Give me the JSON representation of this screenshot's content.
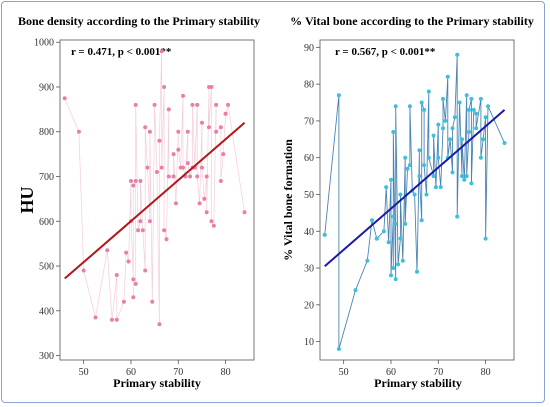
{
  "chart_data": [
    {
      "type": "scatter",
      "title": "Bone density according to the Primary stability",
      "xlabel": "Primary stability",
      "ylabel": "HU",
      "annotation": "r = 0.471, p < 0.001**",
      "xlim": [
        45,
        86
      ],
      "ylim": [
        290,
        1005
      ],
      "xticks": [
        50,
        60,
        70,
        80
      ],
      "yticks": [
        300,
        400,
        500,
        600,
        700,
        800,
        900,
        1000
      ],
      "colors": {
        "marker": "#e87fa8",
        "line": "#f2c4d4",
        "fit": "#b01818"
      },
      "fit": {
        "x": [
          46,
          84
        ],
        "y": [
          472,
          820
        ]
      },
      "points": {
        "x": [
          46,
          49,
          50,
          52.5,
          55,
          56,
          57,
          57,
          58.5,
          59,
          59.5,
          60,
          60,
          60.5,
          60.5,
          60.5,
          61,
          61,
          61,
          61.5,
          62,
          62,
          62.5,
          63,
          63,
          63.5,
          64,
          64,
          64.5,
          65,
          65.5,
          66,
          66,
          66.5,
          66.5,
          67,
          67,
          67.5,
          68,
          68,
          69,
          69,
          69.5,
          70,
          70,
          70.5,
          71,
          71,
          71.5,
          72,
          72,
          72.5,
          73,
          73,
          73.5,
          74,
          74,
          74.5,
          75,
          75,
          75.5,
          76,
          76,
          76.5,
          76.5,
          77,
          77,
          77.5,
          78,
          78,
          79,
          79,
          79.5,
          80,
          80,
          80.5,
          84
        ],
        "y": [
          875,
          800,
          490,
          385,
          535,
          380,
          480,
          380,
          420,
          530,
          510,
          690,
          600,
          470,
          430,
          680,
          690,
          460,
          860,
          580,
          600,
          690,
          580,
          490,
          810,
          720,
          600,
          800,
          420,
          860,
          710,
          370,
          780,
          980,
          720,
          900,
          580,
          560,
          850,
          700,
          700,
          750,
          640,
          800,
          760,
          720,
          880,
          720,
          700,
          800,
          730,
          700,
          720,
          860,
          720,
          860,
          700,
          640,
          820,
          720,
          650,
          700,
          620,
          900,
          810,
          900,
          600,
          590,
          860,
          800,
          810,
          690,
          750,
          840,
          840,
          860,
          620
        ]
      }
    },
    {
      "type": "scatter",
      "title": "% Vital bone according to the Primary stability",
      "xlabel": "Primary stability",
      "ylabel": "% Vital bone formation",
      "annotation": "r = 0.567, p < 0.001**",
      "xlim": [
        45,
        86
      ],
      "ylim": [
        5,
        92
      ],
      "xticks": [
        50,
        60,
        70,
        80
      ],
      "yticks": [
        10,
        20,
        30,
        40,
        50,
        60,
        70,
        80,
        90
      ],
      "colors": {
        "marker": "#3cc0dc",
        "line": "#2a6fa8",
        "fit": "#1a1aa6"
      },
      "fit": {
        "x": [
          46,
          84
        ],
        "y": [
          30.5,
          73
        ]
      },
      "points": {
        "x": [
          46,
          49,
          49,
          52.5,
          55,
          56,
          57,
          57,
          58.5,
          59,
          59.5,
          60,
          60,
          60.5,
          60.5,
          60.5,
          61,
          61,
          61,
          61.5,
          62,
          62,
          62.5,
          63,
          63,
          63.5,
          64,
          64,
          64.5,
          65,
          65.5,
          66,
          66,
          66.5,
          66.5,
          67,
          67,
          67.5,
          68,
          68,
          69,
          69,
          69.5,
          70,
          70,
          70.5,
          71,
          71,
          71.5,
          72,
          72,
          72.5,
          73,
          73,
          73.5,
          74,
          74,
          74.5,
          75,
          75,
          75.5,
          76,
          76,
          76.5,
          76.5,
          77,
          77,
          77.5,
          78,
          78,
          79,
          79,
          79.5,
          80,
          80,
          80.5,
          84
        ],
        "y": [
          39,
          77,
          8,
          24,
          32,
          43,
          38,
          38,
          40,
          52,
          37,
          54,
          28,
          44,
          30,
          67,
          27,
          42,
          74,
          31,
          38,
          50,
          32,
          60,
          42,
          57,
          58,
          74,
          51,
          50,
          29,
          62,
          55,
          43,
          75,
          73,
          58,
          50,
          78,
          60,
          55,
          66,
          52,
          69,
          60,
          52,
          68,
          76,
          70,
          82,
          60,
          65,
          56,
          68,
          71,
          88,
          44,
          75,
          55,
          65,
          54,
          77,
          55,
          67,
          73,
          76,
          53,
          73,
          72,
          68,
          76,
          60,
          65,
          71,
          38,
          74,
          64
        ]
      }
    }
  ]
}
